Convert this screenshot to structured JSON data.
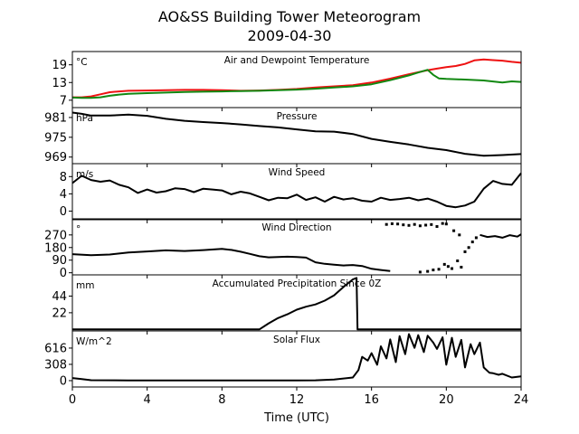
{
  "title_line1": "AO&SS Building Tower Meteorogram",
  "title_line2": "2009-04-30",
  "chart_data": {
    "type": "line",
    "xlabel": "Time (UTC)",
    "xlim": [
      0,
      24
    ],
    "xticks": [
      "0",
      "4",
      "8",
      "12",
      "16",
      "20",
      "24"
    ],
    "colors": {
      "temperature": "#ee1111",
      "dewpoint": "#118811",
      "black": "#000000"
    },
    "panels": [
      {
        "id": "temp",
        "title": "Air and Dewpoint Temperature",
        "unit": "°C",
        "ylim": [
          4.5,
          23.5
        ],
        "yticks": [
          "7",
          "13",
          "19"
        ],
        "series": [
          {
            "key": "temperature",
            "color": "#ee1111",
            "x": [
              0,
              0.5,
              1,
              1.5,
              2,
              2.5,
              3,
              4,
              5,
              6,
              7,
              8,
              9,
              10,
              11,
              12,
              13,
              14,
              15,
              16,
              17,
              18,
              19,
              19.5,
              20,
              20.5,
              21,
              21.5,
              22,
              22.5,
              23,
              23.5,
              24
            ],
            "y": [
              8.0,
              8.0,
              8.3,
              9.0,
              9.7,
              10.0,
              10.2,
              10.3,
              10.4,
              10.5,
              10.5,
              10.4,
              10.2,
              10.3,
              10.5,
              10.8,
              11.3,
              11.7,
              12.1,
              13.0,
              14.3,
              15.8,
              17.2,
              17.7,
              18.2,
              18.6,
              19.3,
              20.5,
              20.8,
              20.6,
              20.4,
              20.0,
              19.7
            ]
          },
          {
            "key": "dewpoint",
            "color": "#118811",
            "x": [
              0,
              0.5,
              1,
              1.5,
              2,
              2.5,
              3,
              4,
              5,
              6,
              7,
              8,
              9,
              10,
              11,
              12,
              13,
              14,
              15,
              16,
              17,
              18,
              18.5,
              19,
              19.3,
              19.6,
              20,
              21,
              22,
              23,
              23.5,
              24
            ],
            "y": [
              7.9,
              7.8,
              7.8,
              8.0,
              8.5,
              8.9,
              9.2,
              9.4,
              9.6,
              9.8,
              9.9,
              10.0,
              10.1,
              10.2,
              10.4,
              10.6,
              10.9,
              11.3,
              11.7,
              12.4,
              13.8,
              15.4,
              16.4,
              17.3,
              15.6,
              14.4,
              14.2,
              14.0,
              13.7,
              13.0,
              13.4,
              13.2
            ]
          }
        ]
      },
      {
        "id": "pressure",
        "title": "Pressure",
        "unit": "hPa",
        "ylim": [
          967,
          984
        ],
        "yticks": [
          "969",
          "975",
          "981"
        ],
        "series": [
          {
            "key": "pressure",
            "color": "#000000",
            "x": [
              0,
              0.5,
              1,
              2,
              3,
              4,
              5,
              6,
              7,
              8,
              9,
              10,
              11,
              12,
              13,
              14,
              15,
              16,
              17,
              18,
              19,
              20,
              21,
              22,
              23,
              24
            ],
            "y": [
              982.5,
              982.1,
              981.6,
              981.6,
              981.9,
              981.5,
              980.6,
              980.0,
              979.6,
              979.3,
              978.9,
              978.4,
              978.0,
              977.4,
              976.8,
              976.7,
              976.0,
              974.5,
              973.6,
              972.8,
              971.8,
              971.1,
              970.0,
              969.4,
              969.6,
              969.9
            ]
          }
        ]
      },
      {
        "id": "wspd",
        "title": "Wind Speed",
        "unit": "m/s",
        "ylim": [
          -2,
          11
        ],
        "yticks": [
          "0",
          "4",
          "8"
        ],
        "series": [
          {
            "key": "windspeed",
            "color": "#000000",
            "x": [
              0,
              0.5,
              1,
              1.5,
              2,
              2.5,
              3,
              3.5,
              4,
              4.5,
              5,
              5.5,
              6,
              6.5,
              7,
              7.5,
              8,
              8.5,
              9,
              9.5,
              10,
              10.5,
              11,
              11.5,
              12,
              12.5,
              13,
              13.5,
              14,
              14.5,
              15,
              15.5,
              16,
              16.5,
              17,
              17.5,
              18,
              18.5,
              19,
              19.5,
              20,
              20.5,
              21,
              21.5,
              22,
              22.5,
              23,
              23.5,
              24
            ],
            "y": [
              6.5,
              8.2,
              7.2,
              6.8,
              7.1,
              6.1,
              5.5,
              4.2,
              5.0,
              4.3,
              4.6,
              5.3,
              5.1,
              4.4,
              5.2,
              5.0,
              4.8,
              3.9,
              4.5,
              4.1,
              3.3,
              2.5,
              3.1,
              3.0,
              3.8,
              2.6,
              3.2,
              2.2,
              3.3,
              2.7,
              3.0,
              2.4,
              2.2,
              3.1,
              2.6,
              2.8,
              3.1,
              2.5,
              2.9,
              2.2,
              1.2,
              0.9,
              1.3,
              2.2,
              5.2,
              7.0,
              6.3,
              6.1,
              8.8
            ]
          }
        ]
      },
      {
        "id": "wdir",
        "title": "Wind Direction",
        "unit": "°",
        "ylim": [
          -15,
          385
        ],
        "yticks": [
          "0",
          "90",
          "180",
          "270"
        ],
        "series": [
          {
            "key": "winddir_line",
            "color": "#000000",
            "x": [
              0,
              1,
              2,
              3,
              4,
              5,
              6,
              7,
              8,
              8.5,
              9,
              9.5,
              10,
              10.5,
              11,
              11.5,
              12,
              12.5,
              13,
              13.5,
              14,
              14.5,
              15,
              15.5,
              16,
              16.5,
              17
            ],
            "y": [
              133,
              125,
              130,
              145,
              152,
              160,
              155,
              162,
              170,
              163,
              150,
              135,
              118,
              110,
              113,
              115,
              112,
              108,
              75,
              64,
              58,
              52,
              55,
              48,
              28,
              20,
              12
            ]
          },
          {
            "key": "winddir_line2",
            "color": "#000000",
            "x": [
              21.8,
              22.2,
              22.6,
              23,
              23.4,
              23.8,
              24
            ],
            "y": [
              270,
              255,
              262,
              250,
              268,
              258,
              275
            ]
          }
        ],
        "points": {
          "x": [
            16.8,
            17.1,
            17.4,
            17.7,
            18.0,
            18.3,
            18.6,
            18.9,
            19.2,
            19.5,
            19.8,
            20.0,
            19.3,
            19.6,
            19.9,
            20.1,
            20.3,
            20.6,
            20.8,
            21.0,
            21.2,
            21.4,
            21.6,
            20.4,
            20.7,
            19.0,
            18.6
          ],
          "y": [
            345,
            350,
            348,
            342,
            338,
            345,
            335,
            340,
            344,
            330,
            352,
            348,
            20,
            25,
            60,
            45,
            30,
            85,
            40,
            150,
            180,
            220,
            250,
            300,
            270,
            10,
            5
          ]
        }
      },
      {
        "id": "precip",
        "title": "Accumulated Precipitation Since 0Z",
        "unit": "mm",
        "ylim": [
          -2,
          72
        ],
        "yticks": [
          "22",
          "44"
        ],
        "series": [
          {
            "key": "precip",
            "color": "#000000",
            "x": [
              0,
              10.0,
              10.5,
              11,
              11.5,
              12,
              12.5,
              13,
              13.5,
              14,
              14.5,
              15,
              15.2,
              15.25,
              24
            ],
            "y": [
              0,
              0,
              8,
              15,
              20,
              26,
              30,
              33,
              38,
              45,
              56,
              66,
              68,
              0,
              0
            ]
          }
        ]
      },
      {
        "id": "solar",
        "title": "Solar Flux",
        "unit": "W/m^2",
        "ylim": [
          -120,
          940
        ],
        "yticks": [
          "0",
          "308",
          "616"
        ],
        "series": [
          {
            "key": "solar",
            "color": "#000000",
            "x": [
              0,
              0.5,
              1,
              3,
              6,
              9,
              12,
              13,
              14,
              15,
              15.3,
              15.5,
              15.8,
              16,
              16.3,
              16.5,
              16.8,
              17,
              17.3,
              17.5,
              17.8,
              18,
              18.3,
              18.5,
              18.8,
              19,
              19.3,
              19.5,
              19.8,
              20,
              20.3,
              20.5,
              20.8,
              21,
              21.3,
              21.5,
              21.8,
              22,
              22.3,
              22.5,
              22.8,
              23,
              23.5,
              24
            ],
            "y": [
              50,
              30,
              8,
              5,
              5,
              5,
              5,
              6,
              20,
              60,
              200,
              450,
              380,
              520,
              300,
              650,
              420,
              780,
              350,
              840,
              500,
              880,
              620,
              860,
              540,
              850,
              720,
              600,
              820,
              300,
              810,
              450,
              770,
              250,
              690,
              500,
              720,
              250,
              150,
              140,
              110,
              130,
              60,
              80
            ]
          }
        ]
      }
    ]
  }
}
